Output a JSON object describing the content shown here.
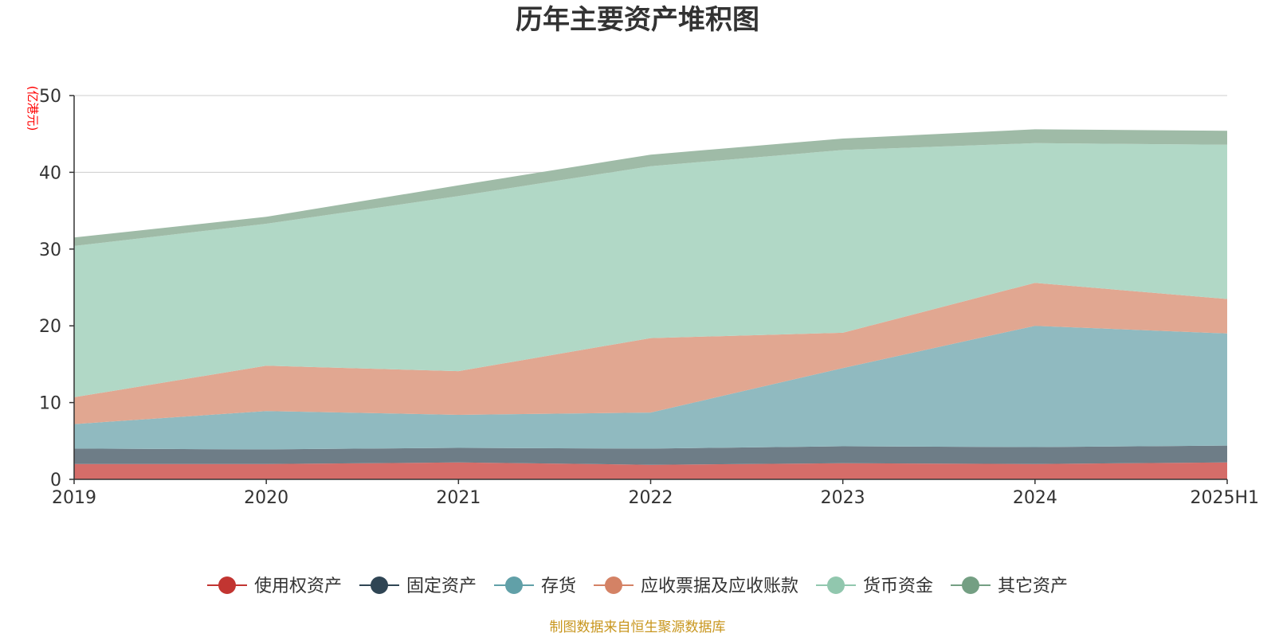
{
  "chart_data": {
    "type": "area",
    "stacked": true,
    "title": "历年主要资产堆积图",
    "ylabel": "(亿港元)",
    "xlabel": "",
    "categories": [
      "2019",
      "2020",
      "2021",
      "2022",
      "2023",
      "2024",
      "2025H1"
    ],
    "ylim": [
      0,
      50
    ],
    "yticks": [
      0,
      10,
      20,
      30,
      40,
      50
    ],
    "grid": true,
    "legend_position": "bottom",
    "series": [
      {
        "name": "使用权资产",
        "color": "#c23531",
        "fill": "#d56d69",
        "values": [
          2.0,
          2.0,
          2.2,
          1.9,
          2.1,
          2.0,
          2.2
        ]
      },
      {
        "name": "固定资产",
        "color": "#2f4554",
        "fill": "#6e7d87",
        "values": [
          2.0,
          1.9,
          1.9,
          2.1,
          2.2,
          2.2,
          2.2
        ]
      },
      {
        "name": "存货",
        "color": "#61a0a8",
        "fill": "#90bac0",
        "values": [
          3.2,
          5.0,
          4.3,
          4.7,
          10.2,
          15.8,
          14.6
        ]
      },
      {
        "name": "应收票据及应收账款",
        "color": "#d48265",
        "fill": "#e1a791",
        "values": [
          3.5,
          5.9,
          5.7,
          9.7,
          4.6,
          5.6,
          4.5
        ]
      },
      {
        "name": "货币资金",
        "color": "#91c7ae",
        "fill": "#b1d8c6",
        "values": [
          19.7,
          18.5,
          22.8,
          22.4,
          23.8,
          18.2,
          20.1
        ]
      },
      {
        "name": "其它资产",
        "color": "#749f83",
        "fill": "#9fbba7",
        "values": [
          1.1,
          0.9,
          1.4,
          1.5,
          1.5,
          1.8,
          1.8
        ]
      }
    ]
  },
  "source_note": "制图数据来自恒生聚源数据库",
  "colors": {
    "axis": "#333333",
    "grid": "#cccccc",
    "unit": "#ff0000",
    "source": "#c8961e"
  }
}
